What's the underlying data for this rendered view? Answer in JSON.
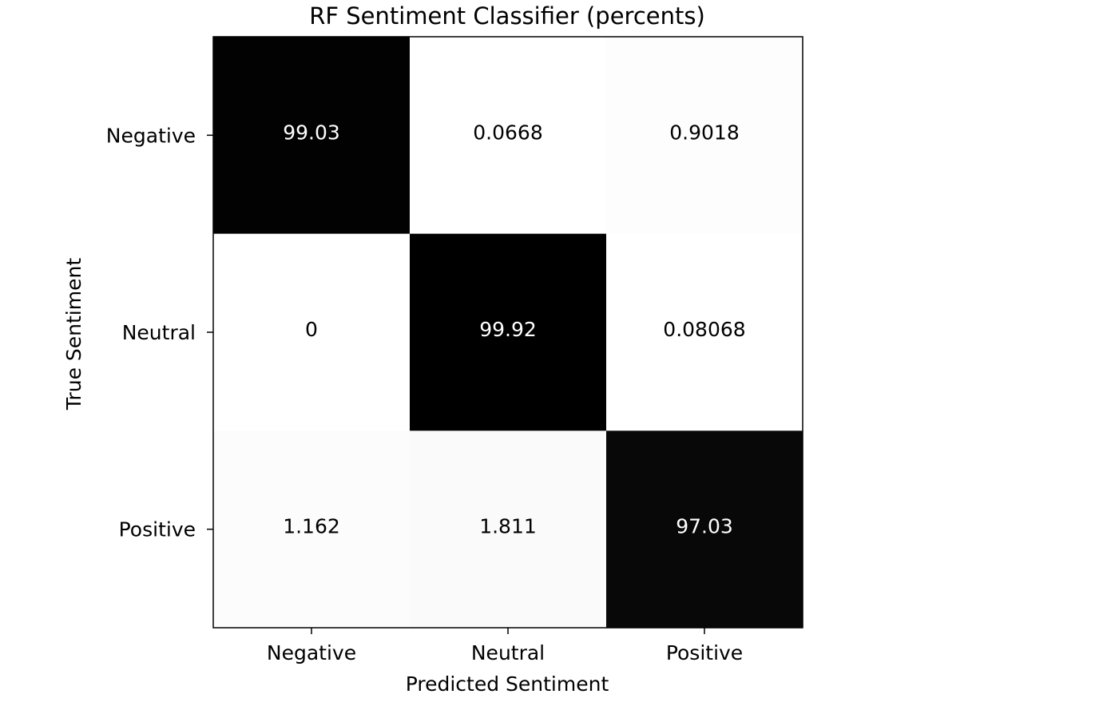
{
  "chart_data": {
    "type": "heatmap",
    "title": "RF Sentiment Classifier (percents)",
    "xlabel": "Predicted Sentiment",
    "ylabel": "True Sentiment",
    "x_categories": [
      "Negative",
      "Neutral",
      "Positive"
    ],
    "y_categories": [
      "Negative",
      "Neutral",
      "Positive"
    ],
    "values": [
      [
        99.03,
        0.0668,
        0.9018
      ],
      [
        0,
        99.92,
        0.08068
      ],
      [
        1.162,
        1.811,
        97.03
      ]
    ],
    "value_labels": [
      [
        "99.03",
        "0.0668",
        "0.9018"
      ],
      [
        "0",
        "99.92",
        "0.08068"
      ],
      [
        "1.162",
        "1.811",
        "97.03"
      ]
    ],
    "value_range": [
      0,
      100
    ],
    "colormap": "binary",
    "colors": {
      "high": "#000000",
      "low": "#ffffff",
      "text_on_dark": "#ffffff",
      "text_on_light": "#000000"
    },
    "grid": false,
    "legend": "none"
  }
}
